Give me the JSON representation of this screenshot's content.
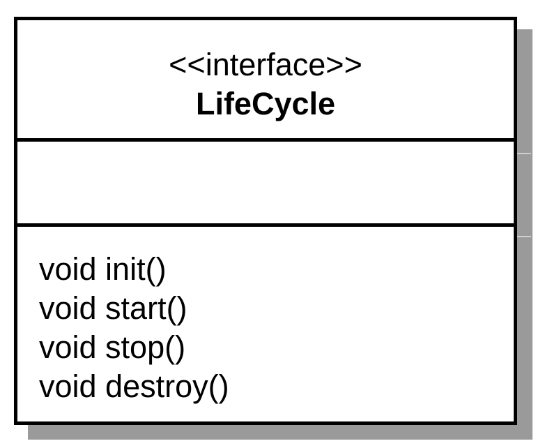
{
  "diagram": {
    "type": "uml-class",
    "stereotype": "<<interface>>",
    "name": "LifeCycle",
    "attributes": [],
    "operations": [
      "void init()",
      "void start()",
      "void stop()",
      "void destroy()"
    ]
  },
  "colors": {
    "border": "#000000",
    "shadow": "#9a9a9a",
    "background": "#ffffff"
  }
}
